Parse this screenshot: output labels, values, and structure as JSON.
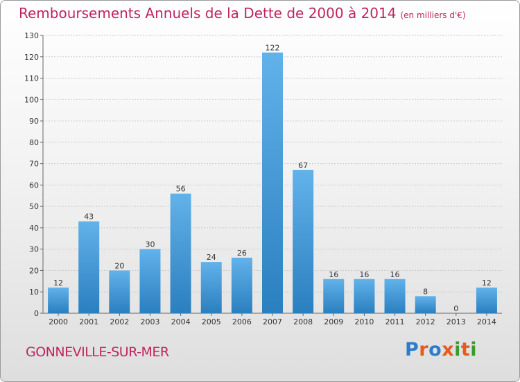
{
  "title": "Remboursements Annuels de la Dette de 2000 à 2014",
  "unit_note": "(en milliers d'€)",
  "commune": "GONNEVILLE-SUR-MER",
  "logo": {
    "text": "Proxiti",
    "letter_colors": [
      "#2e7cc9",
      "#e85a1e",
      "#2e7cc9",
      "#e85a1e",
      "#3a9a2a",
      "#e85a1e",
      "#3a9a2a"
    ]
  },
  "colors": {
    "title": "#c0245f",
    "bar_light": "#62b2ea",
    "bar_dark": "#2a7fbf",
    "grid": "#c9c9c9"
  },
  "chart_data": {
    "type": "bar",
    "title": "Remboursements Annuels de la Dette de 2000 à 2014",
    "xlabel": "",
    "ylabel": "",
    "categories": [
      "2000",
      "2001",
      "2002",
      "2003",
      "2004",
      "2005",
      "2006",
      "2007",
      "2008",
      "2009",
      "2010",
      "2011",
      "2012",
      "2013",
      "2014"
    ],
    "values": [
      12,
      43,
      20,
      30,
      56,
      24,
      26,
      122,
      67,
      16,
      16,
      16,
      8,
      0,
      12
    ],
    "ylim": [
      0,
      130
    ],
    "yticks": [
      0,
      10,
      20,
      30,
      40,
      50,
      60,
      70,
      80,
      90,
      100,
      110,
      120,
      130
    ],
    "grid": true,
    "data_labels": true
  }
}
